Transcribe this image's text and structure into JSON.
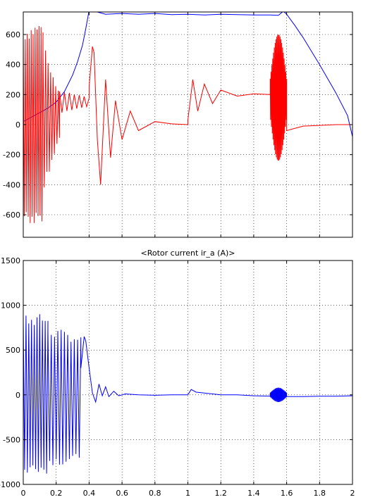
{
  "chart_data": [
    {
      "type": "line",
      "title": "",
      "xlabel": "",
      "ylabel": "",
      "xlim": [
        0,
        2
      ],
      "ylim": [
        -750,
        750
      ],
      "grid": true,
      "xticks": [
        0.4,
        0.6,
        0.8,
        1,
        1.2,
        1.4,
        1.6,
        1.8,
        2
      ],
      "yticks": [
        -600,
        -400,
        -200,
        0,
        200,
        400,
        600
      ],
      "yticklabels": [
        "-600",
        "-400",
        "-200",
        "0",
        "200",
        "400",
        "600"
      ],
      "show_xticklabels": false,
      "series": [
        {
          "color": "#0000ff",
          "x": [
            0,
            0.05,
            0.1,
            0.15,
            0.2,
            0.25,
            0.3,
            0.33,
            0.36,
            0.38,
            0.4,
            0.42,
            0.45,
            0.5,
            0.6,
            0.7,
            0.8,
            0.9,
            1.0,
            1.1,
            1.2,
            1.3,
            1.4,
            1.5,
            1.55,
            1.58,
            1.6,
            1.65,
            1.7,
            1.8,
            1.9,
            1.97,
            2.0
          ],
          "y": [
            20,
            50,
            80,
            110,
            150,
            220,
            330,
            420,
            530,
            640,
            760,
            780,
            750,
            735,
            740,
            735,
            740,
            732,
            735,
            730,
            735,
            732,
            730,
            730,
            728,
            755,
            735,
            660,
            580,
            400,
            210,
            60,
            -80
          ]
        },
        {
          "color": "#ff0000",
          "envelope": [
            {
              "t0": 0.0,
              "t1": 0.12,
              "center": 0,
              "a0": 650,
              "a1": 700,
              "period": 0.012
            },
            {
              "t0": 0.12,
              "t1": 0.22,
              "center": 50,
              "a0": 500,
              "a1": 150,
              "period": 0.015
            },
            {
              "t0": 0.22,
              "t1": 0.4,
              "center": 150,
              "a0": 80,
              "a1": 30,
              "period": 0.03
            }
          ],
          "x": [
            0.4,
            0.42,
            0.43,
            0.45,
            0.47,
            0.5,
            0.53,
            0.56,
            0.6,
            0.65,
            0.7,
            0.8,
            0.9,
            1.0,
            1.0,
            1.03,
            1.06,
            1.1,
            1.15,
            1.2,
            1.3,
            1.4,
            1.5
          ],
          "y": [
            250,
            520,
            480,
            -100,
            -400,
            300,
            -220,
            160,
            -100,
            90,
            -40,
            20,
            5,
            0,
            30,
            300,
            90,
            270,
            140,
            230,
            190,
            205,
            200
          ],
          "burst": {
            "t0": 1.5,
            "t1": 1.6,
            "center": 180,
            "amplitude": 420
          },
          "tail": {
            "x": [
              1.6,
              1.7,
              1.8,
              1.9,
              2.0
            ],
            "y": [
              -40,
              -10,
              -5,
              0,
              0
            ]
          }
        }
      ]
    },
    {
      "type": "line",
      "title": "<Rotor current ir_a (A)>",
      "xlabel": "",
      "ylabel": "",
      "xlim": [
        0,
        2
      ],
      "ylim": [
        -1000,
        1500
      ],
      "grid": true,
      "xticks": [
        0,
        0.2,
        0.4,
        0.6,
        0.8,
        1,
        1.2,
        1.4,
        1.6,
        1.8,
        2
      ],
      "xticklabels": [
        "0",
        "0.2",
        "0.4",
        "0.6",
        "0.8",
        "1",
        "1.2",
        "1.4",
        "1.6",
        "1.8",
        "2"
      ],
      "yticks": [
        -1000,
        -500,
        0,
        500,
        1000,
        1500
      ],
      "yticklabels": [
        "-1000",
        "-500",
        "0",
        "500",
        "1000",
        "1500"
      ],
      "series": [
        {
          "color": "#0000ff",
          "envelope": [
            {
              "t0": 0.0,
              "t1": 0.15,
              "center": 0,
              "a0": 920,
              "a1": 900,
              "period": 0.017
            },
            {
              "t0": 0.15,
              "t1": 0.35,
              "center": -30,
              "a0": 800,
              "a1": 700,
              "period": 0.02
            }
          ],
          "x": [
            0.35,
            0.37,
            0.38,
            0.4,
            0.42,
            0.44,
            0.46,
            0.48,
            0.5,
            0.52,
            0.55,
            0.58,
            0.62,
            0.7,
            0.8,
            0.9,
            1.0,
            1.02,
            1.05,
            1.1,
            1.2,
            1.3,
            1.4,
            1.5
          ],
          "y": [
            300,
            650,
            600,
            300,
            20,
            -80,
            120,
            -10,
            90,
            -20,
            40,
            -10,
            10,
            0,
            -5,
            0,
            0,
            60,
            30,
            20,
            0,
            0,
            -10,
            -15
          ],
          "burst": {
            "t0": 1.5,
            "t1": 1.6,
            "center": 0,
            "amplitude": 80
          },
          "tail": {
            "x": [
              1.6,
              1.7,
              1.8,
              1.9,
              2.0
            ],
            "y": [
              -20,
              -20,
              -15,
              -15,
              -10
            ]
          }
        }
      ]
    }
  ]
}
